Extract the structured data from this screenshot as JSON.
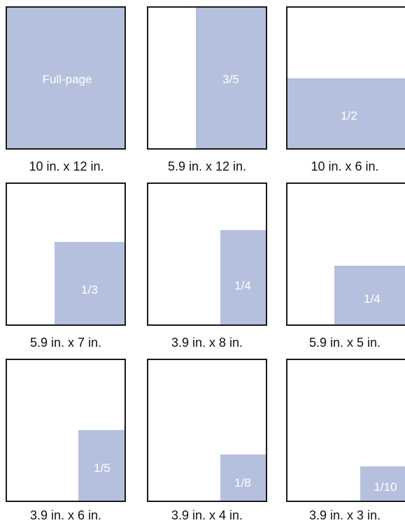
{
  "ad_sizes": [
    {
      "label": "Full-page",
      "dimensions": "10 in. x 12 in."
    },
    {
      "label": "3/5",
      "dimensions": "5.9 in. x 12 in."
    },
    {
      "label": "1/2",
      "dimensions": "10 in. x 6 in."
    },
    {
      "label": "1/3",
      "dimensions": "5.9 in. x 7 in."
    },
    {
      "label": "1/4",
      "dimensions": "3.9 in. x 8 in."
    },
    {
      "label": "1/4",
      "dimensions": "5.9 in. x 5 in."
    },
    {
      "label": "1/5",
      "dimensions": "3.9 in. x 6 in."
    },
    {
      "label": "1/8",
      "dimensions": "3.9 in. x 4 in."
    },
    {
      "label": "1/10",
      "dimensions": "3.9 in. x 3 in."
    }
  ],
  "colors": {
    "ad_fill": "#b5c0de",
    "page_border": "#1a1a1a",
    "label_text": "#ffffff",
    "caption_text": "#111111"
  }
}
